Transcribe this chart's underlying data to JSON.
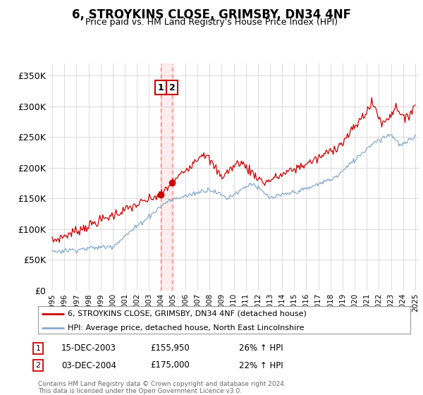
{
  "title": "6, STROYKINS CLOSE, GRIMSBY, DN34 4NF",
  "subtitle": "Price paid vs. HM Land Registry's House Price Index (HPI)",
  "ylabel_ticks": [
    "£0",
    "£50K",
    "£100K",
    "£150K",
    "£200K",
    "£250K",
    "£300K",
    "£350K"
  ],
  "ylim": [
    0,
    370000
  ],
  "yticks": [
    0,
    50000,
    100000,
    150000,
    200000,
    250000,
    300000,
    350000
  ],
  "x_start_year": 1995,
  "x_end_year": 2025,
  "sale1_date": 2003.96,
  "sale1_price": 155950,
  "sale2_date": 2004.92,
  "sale2_price": 175000,
  "sale1_date_str": "15-DEC-2003",
  "sale1_price_str": "£155,950",
  "sale1_hpi": "26% ↑ HPI",
  "sale2_date_str": "03-DEC-2004",
  "sale2_price_str": "£175,000",
  "sale2_hpi": "22% ↑ HPI",
  "legend_line1": "6, STROYKINS CLOSE, GRIMSBY, DN34 4NF (detached house)",
  "legend_line2": "HPI: Average price, detached house, North East Lincolnshire",
  "footnote1": "Contains HM Land Registry data © Crown copyright and database right 2024.",
  "footnote2": "This data is licensed under the Open Government Licence v3.0.",
  "line_color_red": "#cc0000",
  "line_color_blue": "#88aacc",
  "background_color": "#ffffff",
  "grid_color": "#cccccc",
  "vline_color": "#ff8888",
  "box_color": "#cc0000"
}
